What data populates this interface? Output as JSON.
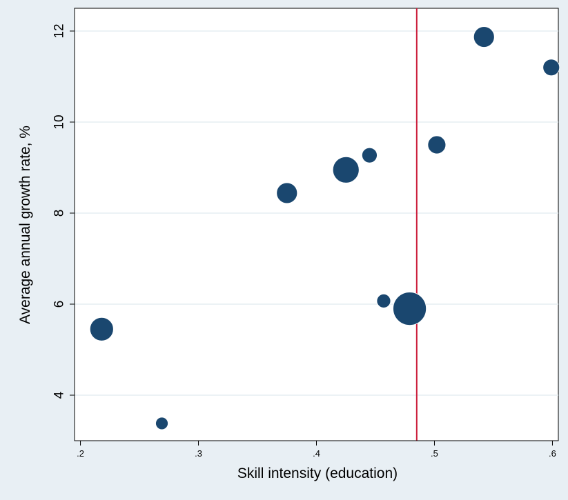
{
  "chart_data": {
    "type": "scatter",
    "title": "",
    "xlabel": "Skill intensity (education)",
    "ylabel": "Average annual growth rate, %",
    "xlim": [
      0.195,
      0.605
    ],
    "ylim": [
      3.0,
      12.5
    ],
    "x_ticks": [
      0.2,
      0.3,
      0.4,
      0.5,
      0.6
    ],
    "x_tick_labels": [
      ".2",
      ".3",
      ".4",
      ".5",
      ".6"
    ],
    "y_ticks": [
      4,
      6,
      8,
      10,
      12
    ],
    "y_tick_labels": [
      "4",
      "6",
      "8",
      "10",
      "12"
    ],
    "grid": true,
    "reference_line_x": 0.485,
    "marker_color": "#1a476f",
    "reference_line_color": "#cc1f3d",
    "points": [
      {
        "x": 0.218,
        "y": 5.45,
        "size": 17
      },
      {
        "x": 0.269,
        "y": 3.38,
        "size": 9
      },
      {
        "x": 0.375,
        "y": 8.44,
        "size": 15
      },
      {
        "x": 0.425,
        "y": 8.95,
        "size": 19
      },
      {
        "x": 0.445,
        "y": 9.27,
        "size": 11
      },
      {
        "x": 0.457,
        "y": 6.07,
        "size": 10
      },
      {
        "x": 0.479,
        "y": 5.9,
        "size": 24
      },
      {
        "x": 0.502,
        "y": 9.5,
        "size": 13
      },
      {
        "x": 0.542,
        "y": 11.87,
        "size": 15
      },
      {
        "x": 0.599,
        "y": 11.2,
        "size": 12
      }
    ]
  }
}
